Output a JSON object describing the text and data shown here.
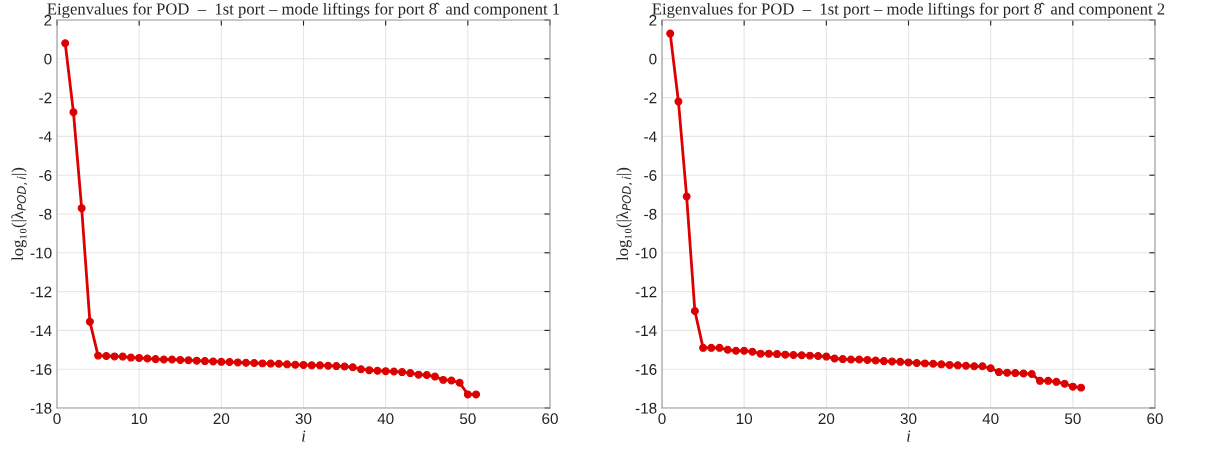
{
  "chart_data": [
    {
      "type": "line",
      "title": "Eigenvalues for POD  –  1st port – mode liftings for port 8̂  and component 1",
      "xlabel": "i",
      "ylabel": "log₁₀(|λ$_{POD,i}$|)",
      "x": [
        1,
        2,
        3,
        4,
        5,
        6,
        7,
        8,
        9,
        10,
        11,
        12,
        13,
        14,
        15,
        16,
        17,
        18,
        19,
        20,
        21,
        22,
        23,
        24,
        25,
        26,
        27,
        28,
        29,
        30,
        31,
        32,
        33,
        34,
        35,
        36,
        37,
        38,
        39,
        40,
        41,
        42,
        43,
        44,
        45,
        46,
        47,
        48,
        49,
        50,
        51
      ],
      "series": [
        {
          "color": "#dd0000",
          "values": [
            0.8,
            -2.75,
            -7.7,
            -13.55,
            -15.3,
            -15.32,
            -15.34,
            -15.35,
            -15.4,
            -15.42,
            -15.45,
            -15.48,
            -15.5,
            -15.5,
            -15.52,
            -15.54,
            -15.56,
            -15.58,
            -15.6,
            -15.62,
            -15.63,
            -15.65,
            -15.67,
            -15.68,
            -15.7,
            -15.71,
            -15.72,
            -15.75,
            -15.77,
            -15.78,
            -15.8,
            -15.8,
            -15.82,
            -15.84,
            -15.86,
            -15.9,
            -16.0,
            -16.05,
            -16.08,
            -16.1,
            -16.12,
            -16.15,
            -16.2,
            -16.28,
            -16.3,
            -16.38,
            -16.55,
            -16.58,
            -16.7,
            -17.3,
            -17.3
          ]
        }
      ],
      "xlim": [
        0,
        60
      ],
      "xticks": [
        0,
        10,
        20,
        30,
        40,
        50,
        60
      ],
      "ylim": [
        -18,
        2
      ],
      "yticks": [
        -18,
        -16,
        -14,
        -12,
        -10,
        -8,
        -6,
        -4,
        -2,
        0,
        2
      ],
      "grid": true,
      "marker": "circle",
      "line_style": "solid"
    },
    {
      "type": "line",
      "title": "Eigenvalues for POD  –  1st port – mode liftings for port 8̂  and component 2",
      "xlabel": "i",
      "ylabel": "log₁₀(|λ$_{POD,i}$|)",
      "x": [
        1,
        2,
        3,
        4,
        5,
        6,
        7,
        8,
        9,
        10,
        11,
        12,
        13,
        14,
        15,
        16,
        17,
        18,
        19,
        20,
        21,
        22,
        23,
        24,
        25,
        26,
        27,
        28,
        29,
        30,
        31,
        32,
        33,
        34,
        35,
        36,
        37,
        38,
        39,
        40,
        41,
        42,
        43,
        44,
        45,
        46,
        47,
        48,
        49,
        50,
        51
      ],
      "series": [
        {
          "color": "#dd0000",
          "values": [
            1.3,
            -2.2,
            -7.1,
            -13.0,
            -14.9,
            -14.9,
            -14.9,
            -15.0,
            -15.05,
            -15.05,
            -15.1,
            -15.2,
            -15.2,
            -15.22,
            -15.25,
            -15.27,
            -15.28,
            -15.3,
            -15.32,
            -15.35,
            -15.45,
            -15.48,
            -15.5,
            -15.5,
            -15.52,
            -15.55,
            -15.58,
            -15.6,
            -15.62,
            -15.65,
            -15.68,
            -15.7,
            -15.72,
            -15.75,
            -15.78,
            -15.8,
            -15.82,
            -15.85,
            -15.85,
            -15.95,
            -16.15,
            -16.18,
            -16.2,
            -16.22,
            -16.25,
            -16.6,
            -16.6,
            -16.65,
            -16.75,
            -16.9,
            -16.95
          ]
        }
      ],
      "xlim": [
        0,
        60
      ],
      "xticks": [
        0,
        10,
        20,
        30,
        40,
        50,
        60
      ],
      "ylim": [
        -18,
        2
      ],
      "yticks": [
        -18,
        -16,
        -14,
        -12,
        -10,
        -8,
        -6,
        -4,
        -2,
        0,
        2
      ],
      "grid": true,
      "marker": "circle",
      "line_style": "solid"
    }
  ]
}
